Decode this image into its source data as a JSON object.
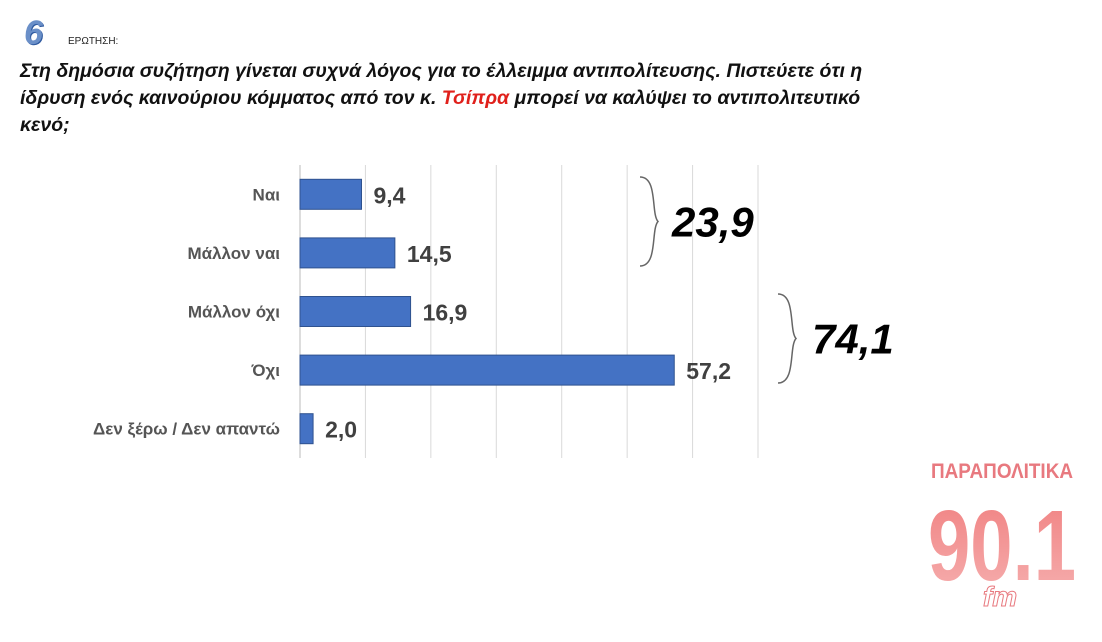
{
  "header": {
    "number": "6",
    "label": "ΕΡΩΤΗΣΗ:",
    "question": {
      "before": "Στη δημόσια συζήτηση γίνεται συχνά λόγος για το έλλειμμα αντιπολίτευσης. Πιστεύετε ότι η ίδρυση ενός καινούριου κόμματος από τον κ. ",
      "highlight": "Τσίπρα",
      "after": " μπορεί να καλύψει το αντιπολιτευτικό κενό;"
    }
  },
  "chart_data": {
    "type": "bar",
    "orientation": "horizontal",
    "categories": [
      "Ναι",
      "Μάλλον ναι",
      "Μάλλον όχι",
      "Όχι",
      "Δεν ξέρω / Δεν απαντώ"
    ],
    "values": [
      9.4,
      14.5,
      16.9,
      57.2,
      2.0
    ],
    "value_labels": [
      "9,4",
      "14,5",
      "16,9",
      "57,2",
      "2,0"
    ],
    "color": "#4472c4",
    "xlim": [
      0,
      70
    ],
    "xticks": [
      0,
      10,
      20,
      30,
      40,
      50,
      60,
      70
    ],
    "grid": true,
    "totals": [
      {
        "value": 23.9,
        "label": "23,9"
      },
      {
        "value": 74.1,
        "label": "74,1"
      }
    ]
  },
  "logo": {
    "name": "ΠΑΡΑΠΟΛΙΤΙΚΑ",
    "frequency": "90.1",
    "unit": "fm"
  }
}
